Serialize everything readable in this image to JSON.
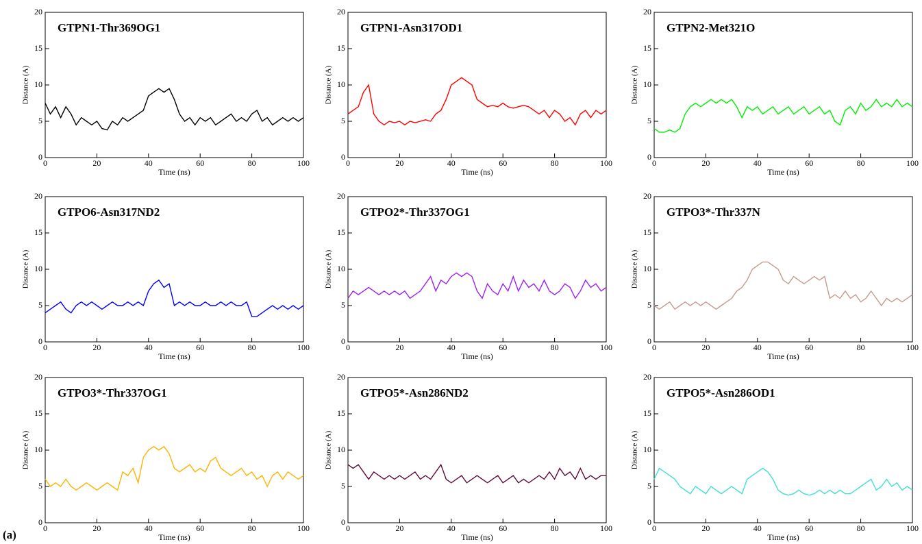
{
  "panel_label": "(a)",
  "chart_data": [
    {
      "type": "line",
      "title": "GTPN1-Thr369OG1",
      "xlabel": "Time (ns)",
      "ylabel": "Distance (A)",
      "color": "#000000",
      "x": [
        0,
        2,
        4,
        6,
        8,
        10,
        12,
        14,
        16,
        18,
        20,
        22,
        24,
        26,
        28,
        30,
        32,
        34,
        36,
        38,
        40,
        42,
        44,
        46,
        48,
        50,
        52,
        54,
        56,
        58,
        60,
        62,
        64,
        66,
        68,
        70,
        72,
        74,
        76,
        78,
        80,
        82,
        84,
        86,
        88,
        90,
        92,
        94,
        96,
        98,
        100
      ],
      "values": [
        7.5,
        6,
        7,
        5.5,
        7,
        6,
        4.5,
        5.5,
        5,
        4.5,
        5,
        4,
        3.8,
        5,
        4.5,
        5.5,
        5,
        5.5,
        6,
        6.5,
        8.5,
        9,
        9.5,
        9,
        9.5,
        8,
        6,
        5,
        5.5,
        4.5,
        5.5,
        5,
        5.5,
        4.5,
        5,
        5.5,
        6,
        5,
        5.5,
        5,
        6,
        6.5,
        5,
        5.5,
        4.5,
        5,
        5.5,
        5,
        5.5,
        5,
        5.5
      ],
      "xlim": [
        0,
        100
      ],
      "ylim": [
        0,
        20
      ],
      "xticks": [
        0,
        20,
        40,
        60,
        80,
        100
      ],
      "yticks": [
        0,
        5,
        10,
        15,
        20
      ]
    },
    {
      "type": "line",
      "title": "GTPN1-Asn317OD1",
      "xlabel": "Time (ns)",
      "ylabel": "Distance (A)",
      "color": "#ff0000",
      "x": [
        0,
        2,
        4,
        6,
        8,
        10,
        12,
        14,
        16,
        18,
        20,
        22,
        24,
        26,
        28,
        30,
        32,
        34,
        36,
        38,
        40,
        42,
        44,
        46,
        48,
        50,
        52,
        54,
        56,
        58,
        60,
        62,
        64,
        66,
        68,
        70,
        72,
        74,
        76,
        78,
        80,
        82,
        84,
        86,
        88,
        90,
        92,
        94,
        96,
        98,
        100
      ],
      "values": [
        6,
        6.5,
        7,
        9,
        10,
        6,
        5,
        4.5,
        5,
        4.8,
        5,
        4.5,
        5,
        4.8,
        5,
        5.2,
        5,
        6,
        6.5,
        8,
        10,
        10.5,
        11,
        10.5,
        10,
        8,
        7.5,
        7,
        7.2,
        7,
        7.5,
        7,
        6.8,
        7,
        7.2,
        7,
        6.5,
        6,
        6.5,
        5.5,
        6.5,
        6,
        5,
        5.5,
        4.5,
        6,
        6.5,
        5.5,
        6.5,
        6,
        6.5
      ],
      "xlim": [
        0,
        100
      ],
      "ylim": [
        0,
        20
      ],
      "xticks": [
        0,
        20,
        40,
        60,
        80,
        100
      ],
      "yticks": [
        0,
        5,
        10,
        15,
        20
      ]
    },
    {
      "type": "line",
      "title": "GTPN2-Met321O",
      "xlabel": "Time (ns)",
      "ylabel": "Distance (A)",
      "color": "#00ee00",
      "x": [
        0,
        2,
        4,
        6,
        8,
        10,
        12,
        14,
        16,
        18,
        20,
        22,
        24,
        26,
        28,
        30,
        32,
        34,
        36,
        38,
        40,
        42,
        44,
        46,
        48,
        50,
        52,
        54,
        56,
        58,
        60,
        62,
        64,
        66,
        68,
        70,
        72,
        74,
        76,
        78,
        80,
        82,
        84,
        86,
        88,
        90,
        92,
        94,
        96,
        98,
        100
      ],
      "values": [
        4,
        3.5,
        3.5,
        3.8,
        3.5,
        4,
        6,
        7,
        7.5,
        7,
        7.5,
        8,
        7.5,
        8,
        7.5,
        8,
        7,
        5.5,
        7,
        6.5,
        7,
        6,
        6.5,
        7,
        6,
        6.5,
        7,
        6,
        6.5,
        7,
        6,
        6.5,
        7,
        6,
        6.5,
        5,
        4.5,
        6.5,
        7,
        6,
        7.5,
        6.5,
        7,
        8,
        7,
        7.5,
        7,
        8,
        7,
        7.5,
        7
      ],
      "xlim": [
        0,
        100
      ],
      "ylim": [
        0,
        20
      ],
      "xticks": [
        0,
        20,
        40,
        60,
        80,
        100
      ],
      "yticks": [
        0,
        5,
        10,
        15,
        20
      ]
    },
    {
      "type": "line",
      "title": "GTPO6-Asn317ND2",
      "xlabel": "Time (ns)",
      "ylabel": "Distance (A)",
      "color": "#0000ff",
      "x": [
        0,
        2,
        4,
        6,
        8,
        10,
        12,
        14,
        16,
        18,
        20,
        22,
        24,
        26,
        28,
        30,
        32,
        34,
        36,
        38,
        40,
        42,
        44,
        46,
        48,
        50,
        52,
        54,
        56,
        58,
        60,
        62,
        64,
        66,
        68,
        70,
        72,
        74,
        76,
        78,
        80,
        82,
        84,
        86,
        88,
        90,
        92,
        94,
        96,
        98,
        100
      ],
      "values": [
        4,
        4.5,
        5,
        5.5,
        4.5,
        4,
        5,
        5.5,
        5,
        5.5,
        5,
        4.5,
        5,
        5.5,
        5,
        5,
        5.5,
        5,
        5.5,
        5,
        7,
        8,
        8.5,
        7.5,
        8,
        5,
        5.5,
        5,
        5.5,
        5,
        5,
        5.5,
        5,
        5,
        5.5,
        5,
        5.5,
        5,
        5,
        5.5,
        3.5,
        3.5,
        4,
        4.5,
        5,
        4.5,
        5,
        4.5,
        5,
        4.5,
        5
      ],
      "xlim": [
        0,
        100
      ],
      "ylim": [
        0,
        20
      ],
      "xticks": [
        0,
        20,
        40,
        60,
        80,
        100
      ],
      "yticks": [
        0,
        5,
        10,
        15,
        20
      ]
    },
    {
      "type": "line",
      "title": "GTPO2*-Thr337OG1",
      "xlabel": "Time (ns)",
      "ylabel": "Distance (A)",
      "color": "#a020f0",
      "x": [
        0,
        2,
        4,
        6,
        8,
        10,
        12,
        14,
        16,
        18,
        20,
        22,
        24,
        26,
        28,
        30,
        32,
        34,
        36,
        38,
        40,
        42,
        44,
        46,
        48,
        50,
        52,
        54,
        56,
        58,
        60,
        62,
        64,
        66,
        68,
        70,
        72,
        74,
        76,
        78,
        80,
        82,
        84,
        86,
        88,
        90,
        92,
        94,
        96,
        98,
        100
      ],
      "values": [
        6,
        7,
        6.5,
        7,
        7.5,
        7,
        6.5,
        7,
        6.5,
        7,
        6.5,
        7,
        6,
        6.5,
        7,
        8,
        9,
        7,
        8.5,
        8,
        9,
        9.5,
        9,
        9.5,
        9,
        7,
        6,
        8,
        7,
        6.5,
        8,
        7,
        9,
        7,
        8.5,
        7.5,
        8,
        7,
        8.5,
        7,
        6.5,
        7,
        8,
        7.5,
        6,
        7,
        8.5,
        7.5,
        8,
        7,
        7.5
      ],
      "xlim": [
        0,
        100
      ],
      "ylim": [
        0,
        20
      ],
      "xticks": [
        0,
        20,
        40,
        60,
        80,
        100
      ],
      "yticks": [
        0,
        5,
        10,
        15,
        20
      ]
    },
    {
      "type": "line",
      "title": "GTPO3*-Thr337N",
      "xlabel": "Time (ns)",
      "ylabel": "Distance (A)",
      "color": "#c49a8f",
      "x": [
        0,
        2,
        4,
        6,
        8,
        10,
        12,
        14,
        16,
        18,
        20,
        22,
        24,
        26,
        28,
        30,
        32,
        34,
        36,
        38,
        40,
        42,
        44,
        46,
        48,
        50,
        52,
        54,
        56,
        58,
        60,
        62,
        64,
        66,
        68,
        70,
        72,
        74,
        76,
        78,
        80,
        82,
        84,
        86,
        88,
        90,
        92,
        94,
        96,
        98,
        100
      ],
      "values": [
        5,
        4.5,
        5,
        5.5,
        4.5,
        5,
        5.5,
        5,
        5.5,
        5,
        5.5,
        5,
        4.5,
        5,
        5.5,
        6,
        7,
        7.5,
        8.5,
        10,
        10.5,
        11,
        11,
        10.5,
        10,
        8.5,
        8,
        9,
        8.5,
        8,
        8.5,
        9,
        8.5,
        9,
        6,
        6.5,
        6,
        7,
        6,
        6.5,
        5.5,
        6,
        7,
        6,
        5,
        6,
        5.5,
        6,
        5.5,
        6,
        6.5
      ],
      "xlim": [
        0,
        100
      ],
      "ylim": [
        0,
        20
      ],
      "xticks": [
        0,
        20,
        40,
        60,
        80,
        100
      ],
      "yticks": [
        0,
        5,
        10,
        15,
        20
      ]
    },
    {
      "type": "line",
      "title": "GTPO3*-Thr337OG1",
      "xlabel": "Time (ns)",
      "ylabel": "Distance (A)",
      "color": "#ffb200",
      "x": [
        0,
        2,
        4,
        6,
        8,
        10,
        12,
        14,
        16,
        18,
        20,
        22,
        24,
        26,
        28,
        30,
        32,
        34,
        36,
        38,
        40,
        42,
        44,
        46,
        48,
        50,
        52,
        54,
        56,
        58,
        60,
        62,
        64,
        66,
        68,
        70,
        72,
        74,
        76,
        78,
        80,
        82,
        84,
        86,
        88,
        90,
        92,
        94,
        96,
        98,
        100
      ],
      "values": [
        6,
        5,
        5.5,
        5,
        6,
        5,
        4.5,
        5,
        5.5,
        5,
        4.5,
        5,
        5.5,
        5,
        4.5,
        7,
        6.5,
        7.5,
        5.5,
        9,
        10,
        10.5,
        10,
        10.5,
        9.5,
        7.5,
        7,
        7.5,
        8,
        7,
        7.5,
        7,
        8.5,
        9,
        7.5,
        7,
        6.5,
        7,
        7.5,
        6.5,
        7,
        6,
        6.5,
        5,
        6.5,
        7,
        6,
        7,
        6.5,
        6,
        6.5
      ],
      "xlim": [
        0,
        100
      ],
      "ylim": [
        0,
        20
      ],
      "xticks": [
        0,
        20,
        40,
        60,
        80,
        100
      ],
      "yticks": [
        0,
        5,
        10,
        15,
        20
      ]
    },
    {
      "type": "line",
      "title": "GTPO5*-Asn286ND2",
      "xlabel": "Time (ns)",
      "ylabel": "Distance (A)",
      "color": "#5e0a3a",
      "x": [
        0,
        2,
        4,
        6,
        8,
        10,
        12,
        14,
        16,
        18,
        20,
        22,
        24,
        26,
        28,
        30,
        32,
        34,
        36,
        38,
        40,
        42,
        44,
        46,
        48,
        50,
        52,
        54,
        56,
        58,
        60,
        62,
        64,
        66,
        68,
        70,
        72,
        74,
        76,
        78,
        80,
        82,
        84,
        86,
        88,
        90,
        92,
        94,
        96,
        98,
        100
      ],
      "values": [
        8,
        7.5,
        8,
        7,
        6,
        7,
        6.5,
        6,
        6.5,
        6,
        6.5,
        6,
        6.5,
        7,
        6,
        6.5,
        6,
        7,
        8,
        6,
        5.5,
        6,
        6.5,
        5.5,
        6,
        6.5,
        6,
        5.5,
        6,
        6.5,
        5.5,
        6,
        6.5,
        5.5,
        6,
        5.5,
        6,
        6.5,
        6,
        7,
        6,
        7.5,
        6.5,
        7,
        6,
        7.5,
        6,
        6.5,
        6,
        6.5,
        6.5
      ],
      "xlim": [
        0,
        100
      ],
      "ylim": [
        0,
        20
      ],
      "xticks": [
        0,
        20,
        40,
        60,
        80,
        100
      ],
      "yticks": [
        0,
        5,
        10,
        15,
        20
      ]
    },
    {
      "type": "line",
      "title": "GTPO5*-Asn286OD1",
      "xlabel": "Time (ns)",
      "ylabel": "Distance (A)",
      "color": "#40e0d0",
      "x": [
        0,
        2,
        4,
        6,
        8,
        10,
        12,
        14,
        16,
        18,
        20,
        22,
        24,
        26,
        28,
        30,
        32,
        34,
        36,
        38,
        40,
        42,
        44,
        46,
        48,
        50,
        52,
        54,
        56,
        58,
        60,
        62,
        64,
        66,
        68,
        70,
        72,
        74,
        76,
        78,
        80,
        82,
        84,
        86,
        88,
        90,
        92,
        94,
        96,
        98,
        100
      ],
      "values": [
        6,
        7.5,
        7,
        6.5,
        6,
        5,
        4.5,
        4,
        5,
        4.5,
        4,
        5,
        4.5,
        4,
        4.5,
        5,
        4.5,
        4,
        6,
        6.5,
        7,
        7.5,
        7,
        6,
        4.5,
        4,
        3.8,
        4,
        4.5,
        4,
        3.8,
        4,
        4.5,
        4,
        4.5,
        4,
        4.5,
        4,
        4,
        4.5,
        5,
        5.5,
        6,
        4.5,
        5,
        6,
        5,
        5.5,
        4.5,
        5,
        4.5
      ],
      "xlim": [
        0,
        100
      ],
      "ylim": [
        0,
        20
      ],
      "xticks": [
        0,
        20,
        40,
        60,
        80,
        100
      ],
      "yticks": [
        0,
        5,
        10,
        15,
        20
      ]
    }
  ]
}
